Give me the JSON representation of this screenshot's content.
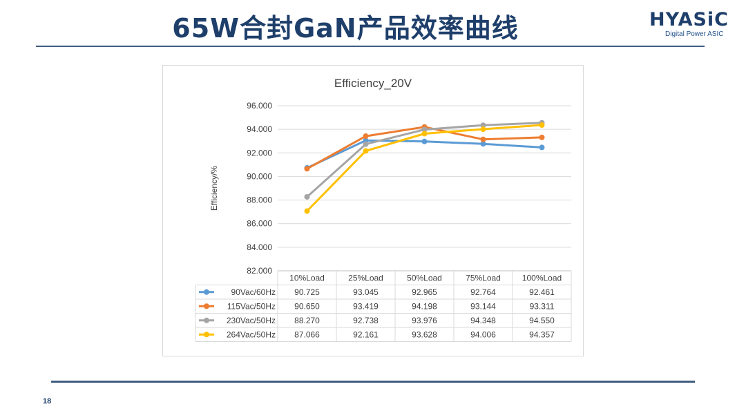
{
  "slide": {
    "title": "65W合封GaN产品效率曲线",
    "logo_text": "HYASiC",
    "logo_subtitle": "Digital Power ASIC",
    "page_number": "18"
  },
  "colors": {
    "title": "#1f3f6b",
    "rule": "#1f3f6b",
    "series": [
      "#5b9bd5",
      "#ed7d31",
      "#a5a5a5",
      "#ffc000"
    ]
  },
  "chart_data": {
    "type": "line",
    "title": "Efficiency_20V",
    "xlabel": "",
    "ylabel": "Efficiency/%",
    "categories": [
      "10%Load",
      "25%Load",
      "50%Load",
      "75%Load",
      "100%Load"
    ],
    "ylim": [
      82,
      96
    ],
    "y_ticks": [
      "82.000",
      "84.000",
      "86.000",
      "88.000",
      "90.000",
      "92.000",
      "94.000",
      "96.000"
    ],
    "grid": true,
    "legend": "data-table-below",
    "series": [
      {
        "name": "90Vac/60Hz",
        "values": [
          90.725,
          93.045,
          92.965,
          92.764,
          92.461
        ],
        "labels": [
          "90.725",
          "93.045",
          "92.965",
          "92.764",
          "92.461"
        ]
      },
      {
        "name": "115Vac/50Hz",
        "values": [
          90.65,
          93.419,
          94.198,
          93.144,
          93.311
        ],
        "labels": [
          "90.650",
          "93.419",
          "94.198",
          "93.144",
          "93.311"
        ]
      },
      {
        "name": "230Vac/50Hz",
        "values": [
          88.27,
          92.738,
          93.976,
          94.348,
          94.55
        ],
        "labels": [
          "88.270",
          "92.738",
          "93.976",
          "94.348",
          "94.550"
        ]
      },
      {
        "name": "264Vac/50Hz",
        "values": [
          87.066,
          92.161,
          93.628,
          94.006,
          94.357
        ],
        "labels": [
          "87.066",
          "92.161",
          "93.628",
          "94.006",
          "94.357"
        ]
      }
    ]
  }
}
